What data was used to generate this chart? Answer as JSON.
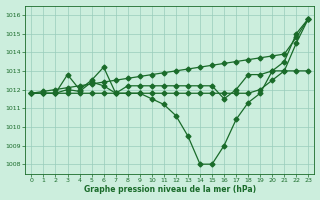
{
  "bg_color": "#cceedd",
  "grid_color": "#99ccbb",
  "line_color": "#1a6b2a",
  "title": "Graphe pression niveau de la mer (hPa)",
  "xlim": [
    -0.5,
    23.5
  ],
  "ylim": [
    1007.5,
    1016.5
  ],
  "yticks": [
    1008,
    1009,
    1010,
    1011,
    1012,
    1013,
    1014,
    1015,
    1016
  ],
  "xticks": [
    0,
    1,
    2,
    3,
    4,
    5,
    6,
    7,
    8,
    9,
    10,
    11,
    12,
    13,
    14,
    15,
    16,
    17,
    18,
    19,
    20,
    21,
    22,
    23
  ],
  "series1": [
    1011.8,
    1011.8,
    1011.8,
    1012.8,
    1012.0,
    1012.5,
    1013.2,
    1011.8,
    1011.8,
    1011.8,
    1011.5,
    1011.2,
    1010.6,
    1009.5,
    1008.0,
    1008.0,
    1009.0,
    1010.4,
    1011.3,
    1011.8,
    1013.0,
    1013.5,
    1015.0,
    1015.8
  ],
  "series2": [
    1011.8,
    1011.8,
    1011.8,
    1012.0,
    1011.9,
    1012.4,
    1012.2,
    1011.8,
    1012.2,
    1012.2,
    1012.2,
    1012.2,
    1012.2,
    1012.2,
    1012.2,
    1012.2,
    1011.5,
    1012.0,
    1012.8,
    1012.8,
    1013.0,
    1013.0,
    1013.0,
    1013.0
  ],
  "series3": [
    1011.8,
    1011.9,
    1012.0,
    1012.1,
    1012.2,
    1012.3,
    1012.4,
    1012.5,
    1012.6,
    1012.7,
    1012.8,
    1012.9,
    1013.0,
    1013.1,
    1013.2,
    1013.3,
    1013.4,
    1013.5,
    1013.6,
    1013.7,
    1013.8,
    1013.9,
    1014.8,
    1015.8
  ],
  "series4": [
    1011.8,
    1011.8,
    1011.8,
    1011.8,
    1011.8,
    1011.8,
    1011.8,
    1011.8,
    1011.8,
    1011.8,
    1011.8,
    1011.8,
    1011.8,
    1011.8,
    1011.8,
    1011.8,
    1011.8,
    1011.8,
    1011.8,
    1012.0,
    1012.5,
    1013.0,
    1014.5,
    1015.8
  ]
}
